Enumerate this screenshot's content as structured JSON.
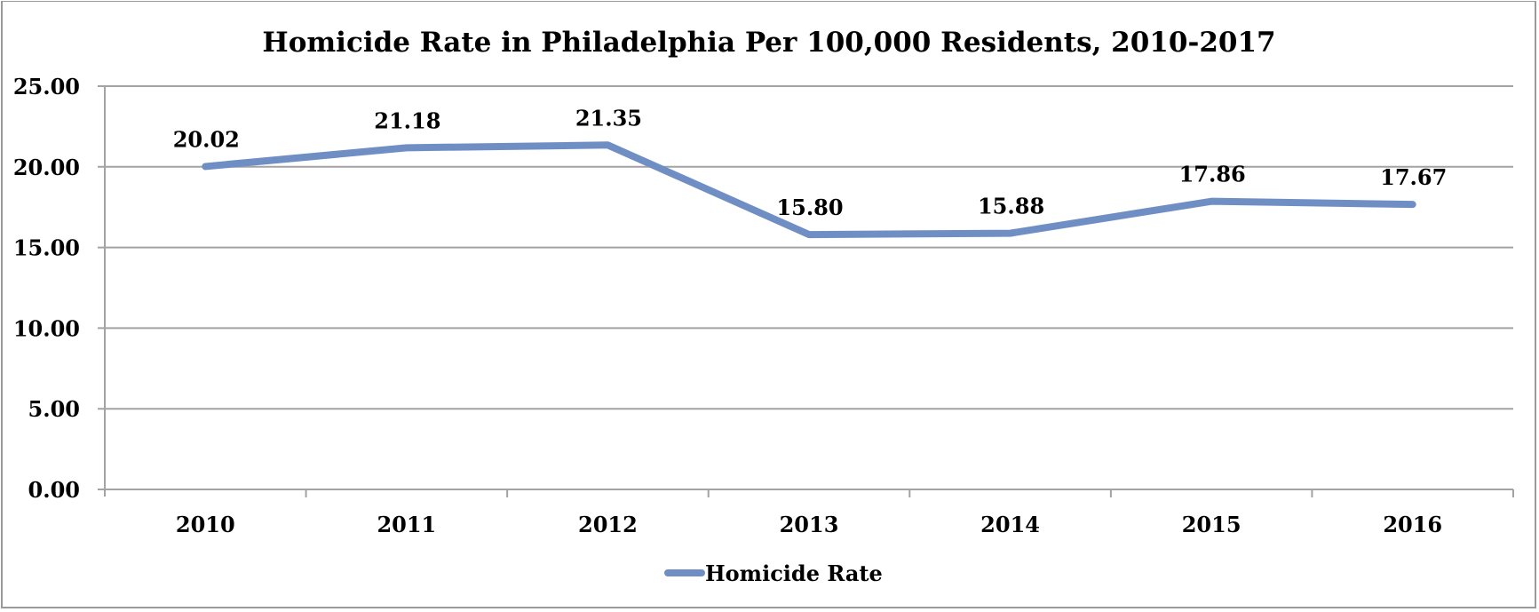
{
  "chart_data": {
    "type": "line",
    "title": "Homicide Rate in Philadelphia Per 100,000 Residents, 2010-2017",
    "xlabel": "",
    "ylabel": "",
    "categories": [
      "2010",
      "2011",
      "2012",
      "2013",
      "2014",
      "2015",
      "2016"
    ],
    "series": [
      {
        "name": "Homicide Rate",
        "values": [
          20.02,
          21.18,
          21.35,
          15.8,
          15.88,
          17.86,
          17.67
        ],
        "labels": [
          "20.02",
          "21.18",
          "21.35",
          "15.80",
          "15.88",
          "17.86",
          "17.67"
        ],
        "color": "#6f8fc4"
      }
    ],
    "ylim": [
      0,
      25
    ],
    "yticks": [
      0,
      5,
      10,
      15,
      20,
      25
    ],
    "ytick_labels": [
      "0.00",
      "5.00",
      "10.00",
      "15.00",
      "20.00",
      "25.00"
    ],
    "grid": true,
    "legend": "bottom",
    "data_labels": true
  }
}
